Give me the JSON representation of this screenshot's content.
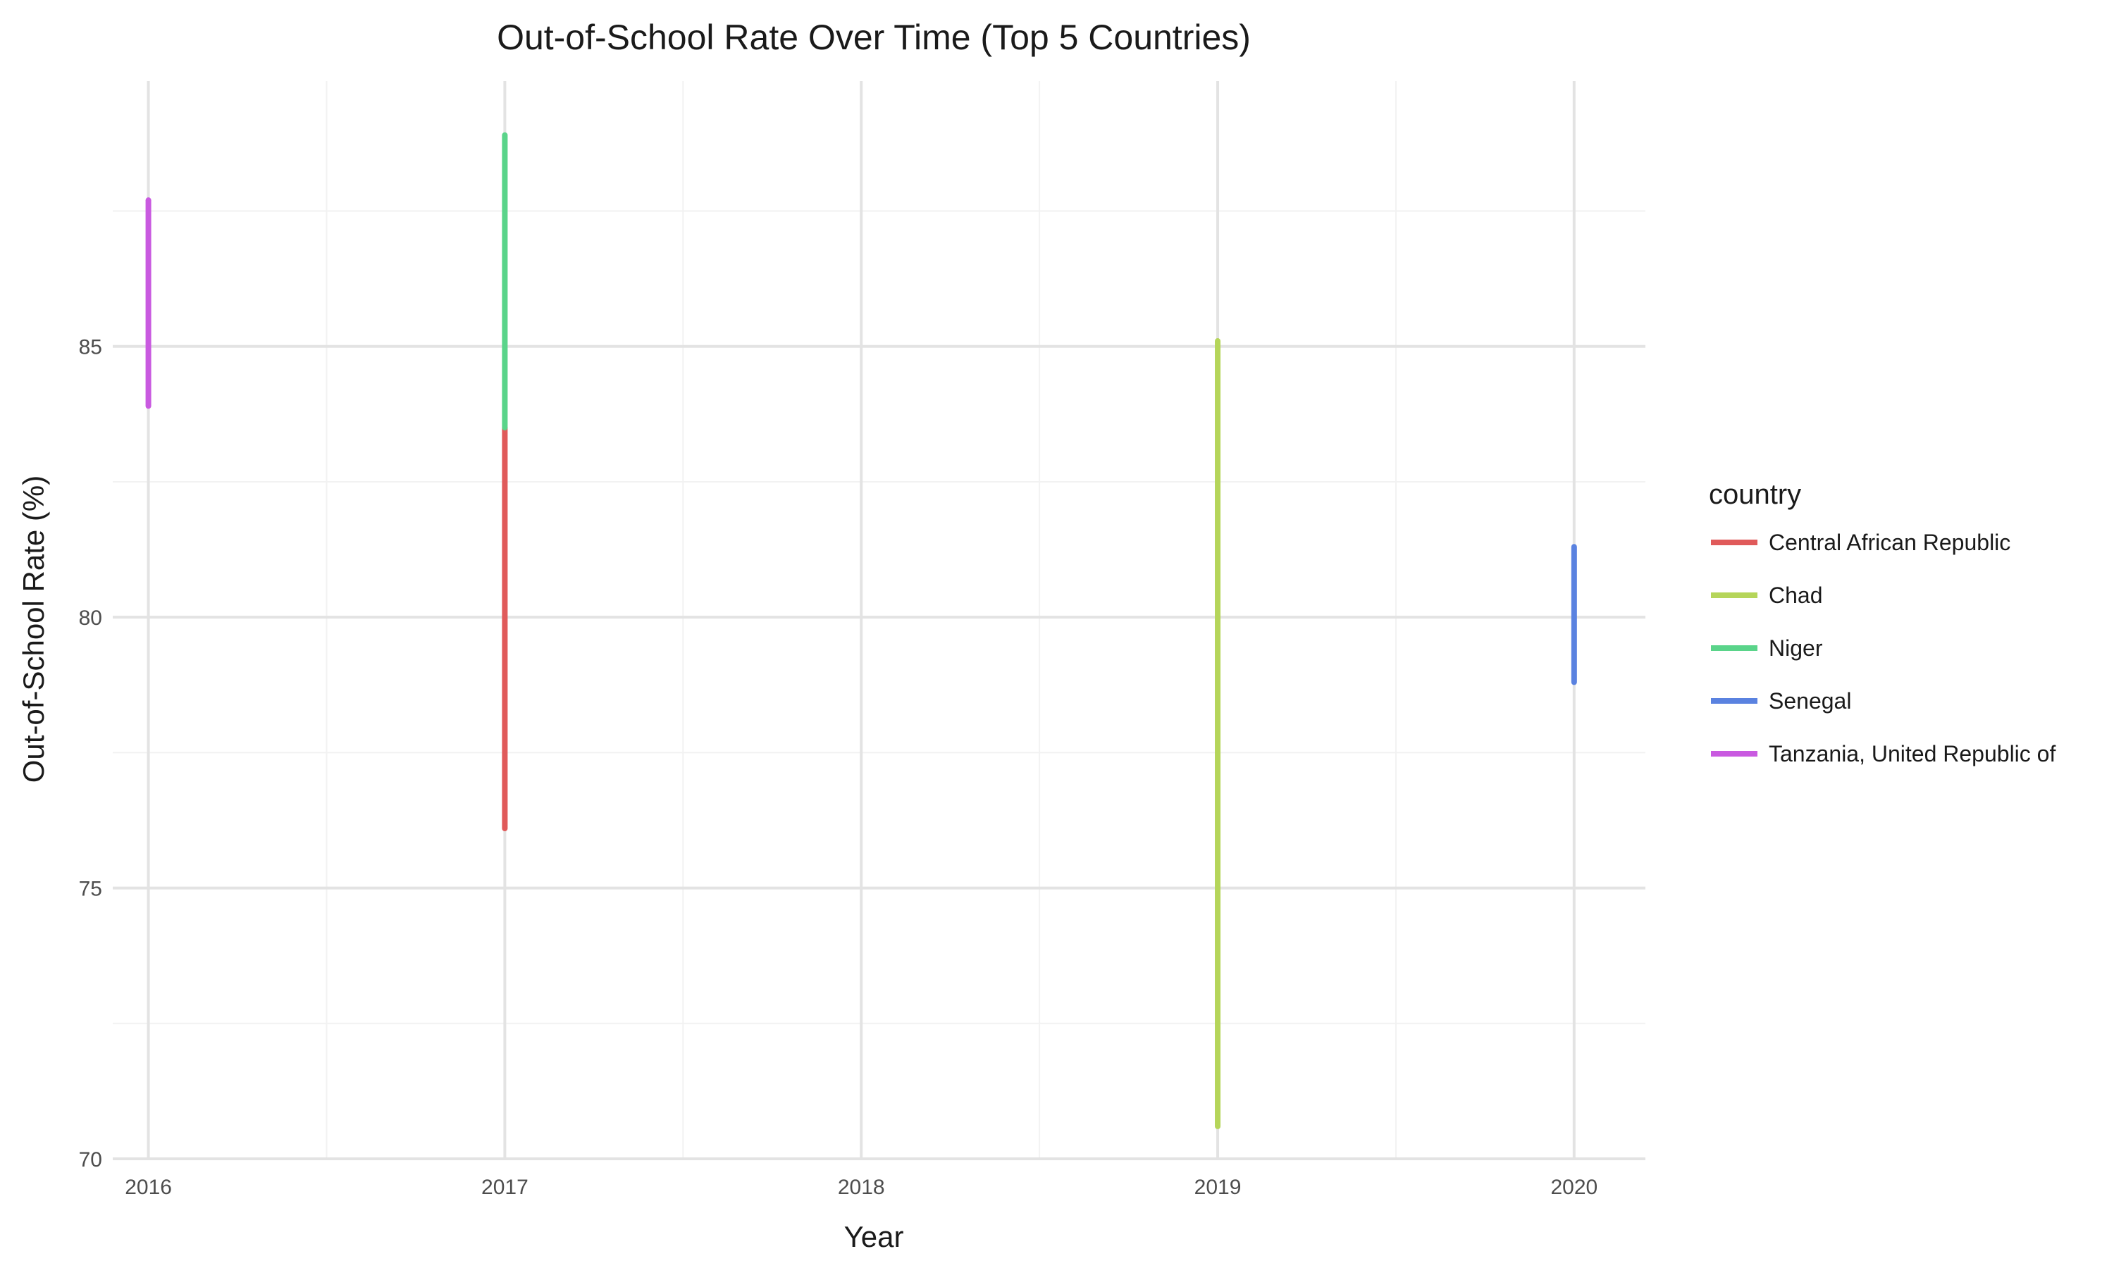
{
  "chart_data": {
    "type": "line",
    "title": "Out-of-School Rate Over Time (Top 5 Countries)",
    "xlabel": "Year",
    "ylabel": "Out-of-School Rate (%)",
    "xlim": [
      2015.9,
      2020.2
    ],
    "ylim": [
      70,
      89.9
    ],
    "x_ticks": [
      2016,
      2017,
      2018,
      2019,
      2020
    ],
    "y_ticks": [
      70,
      75,
      80,
      85
    ],
    "grid": true,
    "legend_title": "country",
    "legend_position": "right",
    "series": [
      {
        "name": "Central African Republic",
        "color": "#e05a5a",
        "points": [
          {
            "x": 2017,
            "y": 76.1
          },
          {
            "x": 2017,
            "y": 83.5
          }
        ]
      },
      {
        "name": "Chad",
        "color": "#b5d55a",
        "points": [
          {
            "x": 2019,
            "y": 70.6
          },
          {
            "x": 2019,
            "y": 85.1
          }
        ]
      },
      {
        "name": "Niger",
        "color": "#5ad48a",
        "points": [
          {
            "x": 2017,
            "y": 83.5
          },
          {
            "x": 2017,
            "y": 88.9
          }
        ]
      },
      {
        "name": "Senegal",
        "color": "#5a82e0",
        "points": [
          {
            "x": 2020,
            "y": 78.8
          },
          {
            "x": 2020,
            "y": 81.3
          }
        ]
      },
      {
        "name": "Tanzania, United Republic of",
        "color": "#c95ae0",
        "points": [
          {
            "x": 2016,
            "y": 83.9
          },
          {
            "x": 2016,
            "y": 87.7
          }
        ]
      }
    ]
  }
}
